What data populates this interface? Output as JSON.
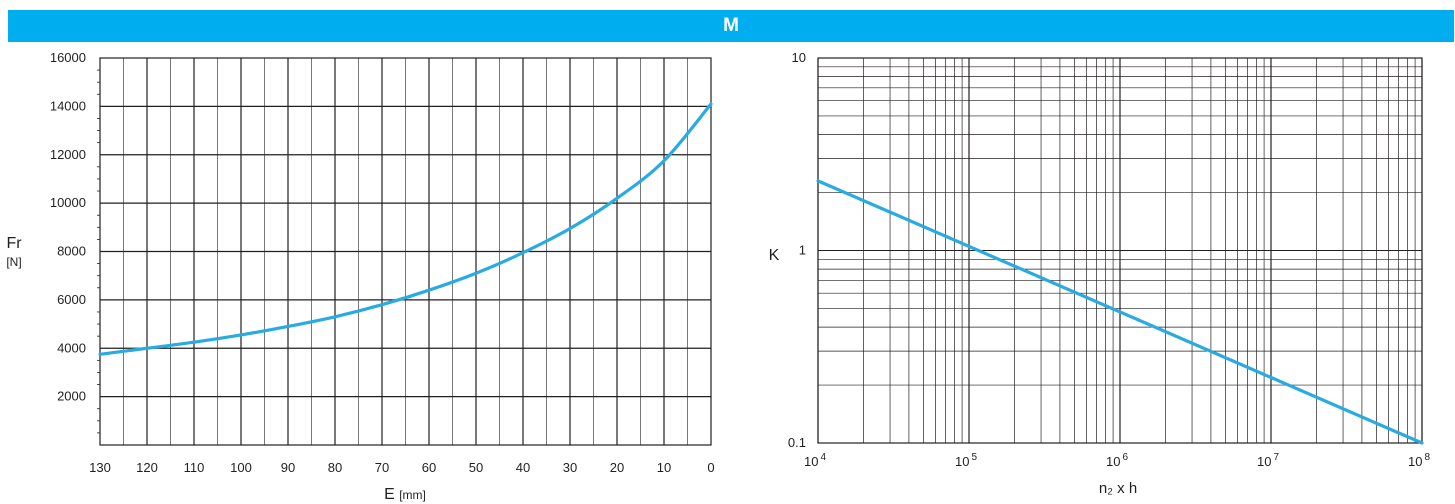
{
  "header": {
    "title": "M"
  },
  "colors": {
    "banner": "#00aeef",
    "curve": "#29abe2",
    "grid": "#231f20"
  },
  "chart_data": [
    {
      "type": "line",
      "title": "",
      "xlabel": "E",
      "xunit": "[mm]",
      "ylabel": "Fr",
      "yunit": "[N]",
      "x_reversed": true,
      "xlim": [
        130,
        0
      ],
      "ylim": [
        0,
        16000
      ],
      "grid": true,
      "x_ticks": [
        "130",
        "120",
        "110",
        "100",
        "90",
        "80",
        "70",
        "60",
        "50",
        "40",
        "30",
        "20",
        "10",
        "0"
      ],
      "y_ticks": [
        "2000",
        "4000",
        "6000",
        "8000",
        "10000",
        "12000",
        "14000",
        "16000"
      ],
      "series": [
        {
          "x": [
            130,
            120,
            110,
            100,
            90,
            80,
            70,
            60,
            50,
            40,
            30,
            20,
            10,
            0
          ],
          "y": [
            3750,
            4000,
            4250,
            4550,
            4900,
            5300,
            5800,
            6400,
            7100,
            7950,
            8950,
            10200,
            11750,
            14100
          ]
        }
      ]
    },
    {
      "type": "line",
      "title": "",
      "xlabel": "n₂ x h",
      "ylabel": "K",
      "x_scale": "log",
      "y_scale": "log",
      "xlim": [
        10000,
        100000000
      ],
      "ylim": [
        0.1,
        10
      ],
      "grid": true,
      "x_ticks": [
        {
          "base": "10",
          "exp": "4"
        },
        {
          "base": "10",
          "exp": "5"
        },
        {
          "base": "10",
          "exp": "6"
        },
        {
          "base": "10",
          "exp": "7"
        },
        {
          "base": "10",
          "exp": "8"
        }
      ],
      "y_ticks": [
        "0.1",
        "1",
        "10"
      ],
      "series": [
        {
          "x": [
            10000,
            100000000
          ],
          "y": [
            2.3,
            0.1
          ]
        }
      ]
    }
  ]
}
